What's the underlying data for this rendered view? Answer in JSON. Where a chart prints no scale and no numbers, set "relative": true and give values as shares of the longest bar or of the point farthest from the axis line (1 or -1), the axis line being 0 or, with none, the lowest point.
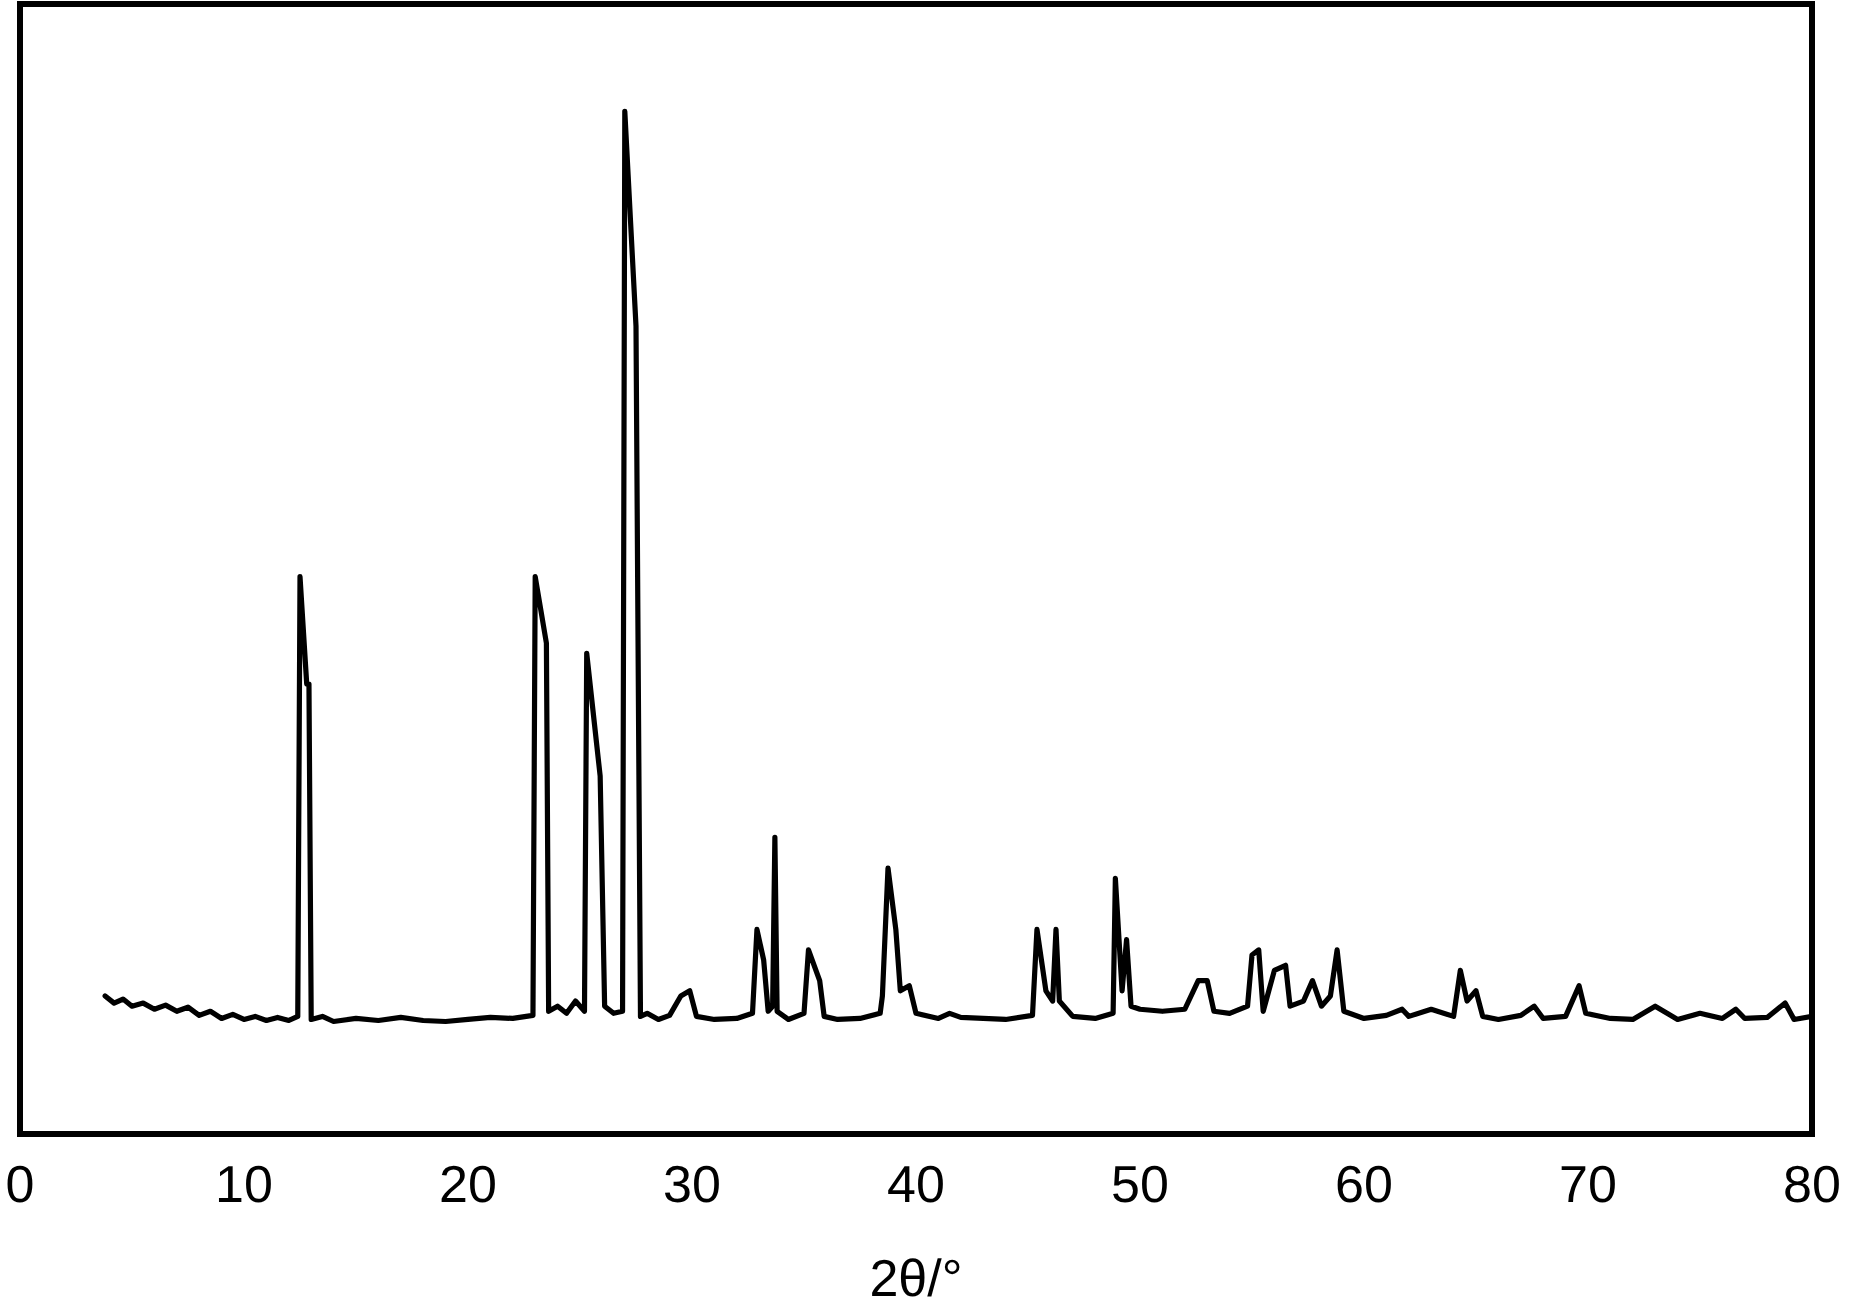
{
  "chart_data": {
    "type": "line",
    "relative": true,
    "xlabel": "2θ/°",
    "xlim": [
      0,
      80
    ],
    "xticks": [
      0,
      10,
      20,
      30,
      40,
      50,
      60,
      70,
      80
    ],
    "grid": false,
    "marker": "none",
    "line_style": "solid",
    "series": [
      {
        "color": "#000000",
        "x": [
          3.8,
          4.2,
          4.6,
          5,
          5.5,
          6,
          6.5,
          7,
          7.5,
          8,
          8.5,
          9,
          9.5,
          10,
          10.5,
          11,
          11.5,
          12,
          12.4,
          12.5,
          12.8,
          12.9,
          13.0,
          13.5,
          14,
          15,
          16,
          17,
          18,
          19,
          20,
          21,
          22,
          22.9,
          23.0,
          23.5,
          23.6,
          24,
          24.4,
          24.8,
          25.2,
          25.3,
          25.9,
          26.1,
          26.5,
          26.9,
          27.0,
          27.5,
          27.7,
          28,
          28.5,
          29,
          29.5,
          29.9,
          30.2,
          31,
          32,
          32.7,
          32.9,
          33.2,
          33.4,
          33.6,
          33.7,
          33.8,
          34.3,
          35,
          35.2,
          35.7,
          35.9,
          36.5,
          37.5,
          38.4,
          38.5,
          38.75,
          39.1,
          39.3,
          39.7,
          40,
          41,
          41.5,
          42,
          43,
          44,
          45.2,
          45.4,
          45.8,
          46.1,
          46.25,
          46.4,
          47,
          48,
          48.8,
          48.9,
          49.2,
          49.4,
          49.6,
          50,
          51,
          52,
          52.6,
          53,
          53.3,
          54,
          54.8,
          55,
          55.3,
          55.5,
          56,
          56.5,
          56.7,
          57.3,
          57.7,
          58.1,
          58.5,
          58.8,
          59.1,
          60,
          61,
          61.7,
          62,
          63,
          64,
          64.3,
          64.6,
          65,
          65.3,
          66,
          67,
          67.6,
          68,
          69,
          69.6,
          69.9,
          71,
          72,
          73,
          74,
          75,
          76,
          76.6,
          77,
          78,
          78.8,
          79.2,
          80
        ],
        "values": [
          0.135,
          0.128,
          0.132,
          0.125,
          0.128,
          0.122,
          0.126,
          0.12,
          0.124,
          0.116,
          0.12,
          0.113,
          0.117,
          0.112,
          0.115,
          0.111,
          0.114,
          0.111,
          0.115,
          0.545,
          0.44,
          0.44,
          0.112,
          0.115,
          0.11,
          0.113,
          0.111,
          0.114,
          0.111,
          0.11,
          0.112,
          0.114,
          0.113,
          0.116,
          0.545,
          0.48,
          0.12,
          0.125,
          0.118,
          0.13,
          0.12,
          0.47,
          0.35,
          0.125,
          0.118,
          0.12,
          1.0,
          0.79,
          0.115,
          0.118,
          0.112,
          0.116,
          0.135,
          0.14,
          0.115,
          0.112,
          0.113,
          0.118,
          0.2,
          0.17,
          0.12,
          0.125,
          0.29,
          0.12,
          0.112,
          0.118,
          0.18,
          0.15,
          0.115,
          0.112,
          0.113,
          0.118,
          0.135,
          0.26,
          0.2,
          0.14,
          0.145,
          0.118,
          0.113,
          0.118,
          0.114,
          0.113,
          0.112,
          0.116,
          0.2,
          0.14,
          0.13,
          0.2,
          0.13,
          0.115,
          0.113,
          0.118,
          0.25,
          0.14,
          0.19,
          0.125,
          0.122,
          0.12,
          0.122,
          0.15,
          0.15,
          0.12,
          0.118,
          0.125,
          0.175,
          0.18,
          0.12,
          0.16,
          0.165,
          0.125,
          0.13,
          0.15,
          0.125,
          0.135,
          0.18,
          0.12,
          0.113,
          0.116,
          0.122,
          0.115,
          0.122,
          0.115,
          0.16,
          0.13,
          0.14,
          0.115,
          0.112,
          0.116,
          0.125,
          0.113,
          0.115,
          0.145,
          0.118,
          0.113,
          0.112,
          0.125,
          0.112,
          0.118,
          0.113,
          0.122,
          0.113,
          0.114,
          0.128,
          0.112,
          0.115
        ]
      }
    ]
  }
}
